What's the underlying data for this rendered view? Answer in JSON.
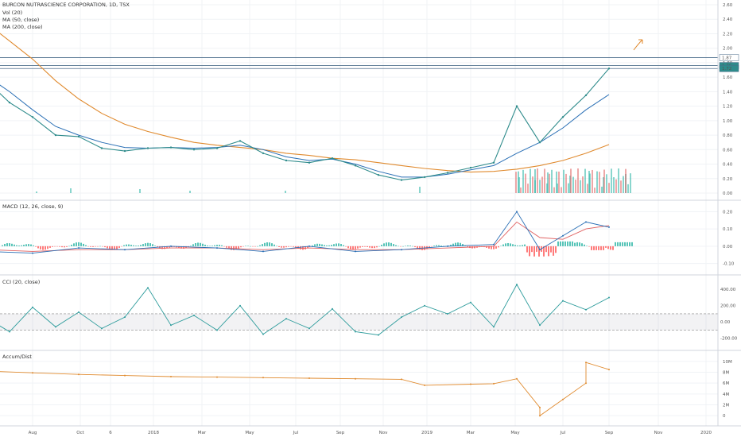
{
  "chart_data": {
    "type": "line",
    "title": "BURCON NUTRASCIENCE CORPORATION, 1D, TSX",
    "x_tick_labels": [
      "Aug",
      "Oct",
      "6",
      "2018",
      "Mar",
      "May",
      "Jul",
      "Sep",
      "Nov",
      "2019",
      "Mar",
      "May",
      "Jul",
      "Sep",
      "Nov",
      "2020"
    ],
    "price": {
      "legend": [
        "Vol (20)",
        "MA (50, close)",
        "MA (200, close)"
      ],
      "y_tick_labels": [
        "2.60",
        "2.40",
        "2.20",
        "2.00",
        "1.80",
        "1.60",
        "1.40",
        "1.20",
        "1.00",
        "0.80",
        "0.60",
        "0.40",
        "0.20",
        "0.00"
      ],
      "ylim": [
        0,
        2.6
      ],
      "price_badges": [
        "1.87",
        "1.76",
        "1.72"
      ],
      "horizontal_levels": [
        1.87,
        1.76,
        1.72
      ],
      "close": [
        [
          "Jun 2017",
          1.55
        ],
        [
          "Jul 2017",
          1.25
        ],
        [
          "Aug 2017",
          1.05
        ],
        [
          "Sep 2017",
          0.8
        ],
        [
          "Oct 2017",
          0.78
        ],
        [
          "Nov 2017",
          0.62
        ],
        [
          "Dec 2017",
          0.58
        ],
        [
          "Jan 2018",
          0.62
        ],
        [
          "Feb 2018",
          0.63
        ],
        [
          "Mar 2018",
          0.6
        ],
        [
          "Apr 2018",
          0.62
        ],
        [
          "May 2018",
          0.72
        ],
        [
          "Jun 2018",
          0.55
        ],
        [
          "Jul 2018",
          0.45
        ],
        [
          "Aug 2018",
          0.42
        ],
        [
          "Sep 2018",
          0.48
        ],
        [
          "Oct 2018",
          0.38
        ],
        [
          "Nov 2018",
          0.25
        ],
        [
          "Dec 2018",
          0.18
        ],
        [
          "Jan 2019",
          0.22
        ],
        [
          "Feb 2019",
          0.28
        ],
        [
          "Mar 2019",
          0.35
        ],
        [
          "Apr 2019",
          0.42
        ],
        [
          "May 2019",
          1.2
        ],
        [
          "Jun 2019",
          0.7
        ],
        [
          "Jul 2019",
          1.05
        ],
        [
          "Aug 2019",
          1.35
        ],
        [
          "Sep 2019",
          1.72
        ]
      ],
      "ma50": [
        [
          "Jun 2017",
          1.62
        ],
        [
          "Jul 2017",
          1.4
        ],
        [
          "Aug 2017",
          1.15
        ],
        [
          "Sep 2017",
          0.92
        ],
        [
          "Oct 2017",
          0.8
        ],
        [
          "Nov 2017",
          0.7
        ],
        [
          "Dec 2017",
          0.63
        ],
        [
          "Jan 2018",
          0.62
        ],
        [
          "Feb 2018",
          0.63
        ],
        [
          "Mar 2018",
          0.62
        ],
        [
          "Apr 2018",
          0.63
        ],
        [
          "May 2018",
          0.66
        ],
        [
          "Jun 2018",
          0.6
        ],
        [
          "Jul 2018",
          0.5
        ],
        [
          "Aug 2018",
          0.45
        ],
        [
          "Sep 2018",
          0.47
        ],
        [
          "Oct 2018",
          0.4
        ],
        [
          "Nov 2018",
          0.3
        ],
        [
          "Dec 2018",
          0.22
        ],
        [
          "Jan 2019",
          0.22
        ],
        [
          "Feb 2019",
          0.26
        ],
        [
          "Mar 2019",
          0.32
        ],
        [
          "Apr 2019",
          0.38
        ],
        [
          "May 2019",
          0.55
        ],
        [
          "Jun 2019",
          0.7
        ],
        [
          "Jul 2019",
          0.9
        ],
        [
          "Aug 2019",
          1.15
        ],
        [
          "Sep 2019",
          1.36
        ]
      ],
      "ma200": [
        [
          "Jun 2017",
          2.35
        ],
        [
          "Jul 2017",
          2.1
        ],
        [
          "Aug 2017",
          1.85
        ],
        [
          "Sep 2017",
          1.55
        ],
        [
          "Oct 2017",
          1.3
        ],
        [
          "Nov 2017",
          1.1
        ],
        [
          "Dec 2017",
          0.95
        ],
        [
          "Jan 2018",
          0.85
        ],
        [
          "Feb 2018",
          0.77
        ],
        [
          "Mar 2018",
          0.7
        ],
        [
          "Apr 2018",
          0.66
        ],
        [
          "May 2018",
          0.63
        ],
        [
          "Jun 2018",
          0.6
        ],
        [
          "Jul 2018",
          0.55
        ],
        [
          "Aug 2018",
          0.52
        ],
        [
          "Sep 2018",
          0.48
        ],
        [
          "Oct 2018",
          0.46
        ],
        [
          "Nov 2018",
          0.42
        ],
        [
          "Dec 2018",
          0.38
        ],
        [
          "Jan 2019",
          0.34
        ],
        [
          "Feb 2019",
          0.31
        ],
        [
          "Mar 2019",
          0.29
        ],
        [
          "Apr 2019",
          0.3
        ],
        [
          "May 2019",
          0.33
        ],
        [
          "Jun 2019",
          0.38
        ],
        [
          "Jul 2019",
          0.45
        ],
        [
          "Aug 2019",
          0.55
        ],
        [
          "Sep 2019",
          0.67
        ]
      ]
    },
    "macd": {
      "legend": "MACD (12, 26, close, 9)",
      "y_tick_labels": [
        "0.20",
        "0.10",
        "0.00",
        "-0.10"
      ],
      "ylim": [
        -0.12,
        0.22
      ],
      "macd": [
        [
          "Jun 2017",
          -0.03
        ],
        [
          "Aug 2017",
          -0.04
        ],
        [
          "Oct 2017",
          -0.01
        ],
        [
          "Dec 2017",
          -0.02
        ],
        [
          "Feb 2018",
          0.0
        ],
        [
          "Apr 2018",
          -0.01
        ],
        [
          "Jun 2018",
          -0.03
        ],
        [
          "Aug 2018",
          0.0
        ],
        [
          "Oct 2018",
          -0.03
        ],
        [
          "Dec 2018",
          -0.02
        ],
        [
          "Feb 2019",
          0.0
        ],
        [
          "Apr 2019",
          0.01
        ],
        [
          "May 2019",
          0.2
        ],
        [
          "Jun 2019",
          -0.02
        ],
        [
          "Jul 2019",
          0.06
        ],
        [
          "Aug 2019",
          0.14
        ],
        [
          "Sep 2019",
          0.11
        ]
      ],
      "signal": [
        [
          "Jun 2017",
          -0.02
        ],
        [
          "Aug 2017",
          -0.03
        ],
        [
          "Oct 2017",
          -0.02
        ],
        [
          "Dec 2017",
          -0.02
        ],
        [
          "Feb 2018",
          -0.01
        ],
        [
          "Apr 2018",
          -0.01
        ],
        [
          "Jun 2018",
          -0.02
        ],
        [
          "Aug 2018",
          -0.01
        ],
        [
          "Oct 2018",
          -0.02
        ],
        [
          "Dec 2018",
          -0.02
        ],
        [
          "Feb 2019",
          -0.01
        ],
        [
          "Apr 2019",
          0.0
        ],
        [
          "May 2019",
          0.14
        ],
        [
          "Jun 2019",
          0.05
        ],
        [
          "Jul 2019",
          0.04
        ],
        [
          "Aug 2019",
          0.1
        ],
        [
          "Sep 2019",
          0.12
        ]
      ]
    },
    "cci": {
      "legend": "CCI (20, close)",
      "y_tick_labels": [
        "400.00",
        "200.00",
        "0.00",
        "-200.00"
      ],
      "ylim": [
        -300,
        480
      ],
      "band": [
        -100,
        100
      ],
      "values": [
        [
          "Jun 2017",
          50
        ],
        [
          "Jul 2017",
          -120
        ],
        [
          "Aug 2017",
          180
        ],
        [
          "Sep 2017",
          -60
        ],
        [
          "Oct 2017",
          120
        ],
        [
          "Nov 2017",
          -80
        ],
        [
          "Dec 2017",
          60
        ],
        [
          "Jan 2018",
          420
        ],
        [
          "Feb 2018",
          -40
        ],
        [
          "Mar 2018",
          80
        ],
        [
          "Apr 2018",
          -100
        ],
        [
          "May 2018",
          200
        ],
        [
          "Jun 2018",
          -150
        ],
        [
          "Jul 2018",
          40
        ],
        [
          "Aug 2018",
          -80
        ],
        [
          "Sep 2018",
          160
        ],
        [
          "Oct 2018",
          -120
        ],
        [
          "Nov 2018",
          -160
        ],
        [
          "Dec 2018",
          60
        ],
        [
          "Jan 2019",
          200
        ],
        [
          "Feb 2019",
          100
        ],
        [
          "Mar 2019",
          240
        ],
        [
          "Apr 2019",
          -60
        ],
        [
          "May 2019",
          460
        ],
        [
          "Jun 2019",
          -40
        ],
        [
          "Jul 2019",
          260
        ],
        [
          "Aug 2019",
          150
        ],
        [
          "Sep 2019",
          300
        ]
      ]
    },
    "accum_dist": {
      "legend": "Accum/Dist",
      "y_tick_labels": [
        "10M",
        "8M",
        "6M",
        "4M",
        "2M",
        "0"
      ],
      "ylim": [
        -1,
        11
      ],
      "values": [
        [
          "Jun 2017",
          8.2
        ],
        [
          "Aug 2017",
          7.9
        ],
        [
          "Oct 2017",
          7.6
        ],
        [
          "Dec 2017",
          7.4
        ],
        [
          "Feb 2018",
          7.2
        ],
        [
          "Apr 2018",
          7.1
        ],
        [
          "Jun 2018",
          7.0
        ],
        [
          "Aug 2018",
          6.9
        ],
        [
          "Oct 2018",
          6.8
        ],
        [
          "Dec 2018",
          6.7
        ],
        [
          "Jan 2019",
          5.6
        ],
        [
          "Mar 2019",
          5.8
        ],
        [
          "Apr 2019",
          5.9
        ],
        [
          "May 2019",
          6.8
        ],
        [
          "Jun 2019",
          1.5
        ],
        [
          "Jun 2019",
          0.0
        ],
        [
          "Jul 2019",
          3.0
        ],
        [
          "Aug 2019",
          6.0
        ],
        [
          "Aug 2019",
          9.8
        ],
        [
          "Sep 2019",
          8.5
        ]
      ]
    },
    "colors": {
      "price_line": "#2e8b8b",
      "ma50": "#2a6fb5",
      "ma200": "#e08a2e",
      "macd_line": "#2a6fb5",
      "signal_line": "#e06060",
      "hist_up": "#2ab5a5",
      "hist_down": "#ff5a5a",
      "cci_line": "#2e9c9c",
      "accum_line": "#e08a2e",
      "vol_up": "#2ab5a5",
      "vol_down": "#e06060",
      "level_line": "#4a6b8a",
      "badge": "#2e8b8b"
    }
  }
}
